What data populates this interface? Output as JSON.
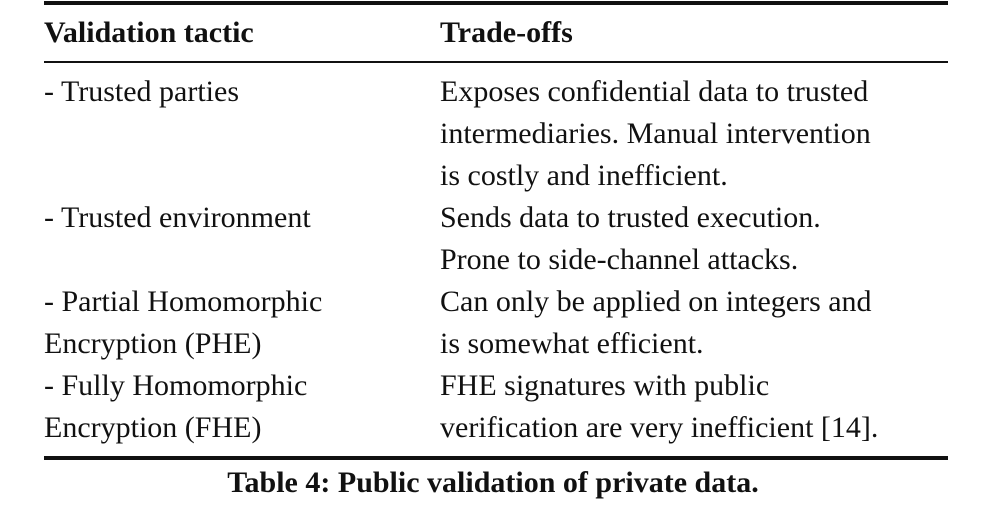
{
  "table": {
    "headers": [
      "Validation tactic",
      "Trade-offs"
    ],
    "rows": [
      {
        "tactic": [
          "- Trusted parties"
        ],
        "tradeoffs": [
          "Exposes confidential data to trusted",
          "intermediaries. Manual intervention",
          "is costly and inefficient."
        ]
      },
      {
        "tactic": [
          "- Trusted environment"
        ],
        "tradeoffs": [
          "Sends data to trusted execution.",
          "Prone to side-channel attacks."
        ]
      },
      {
        "tactic": [
          "- Partial Homomorphic",
          "Encryption (PHE)"
        ],
        "tradeoffs": [
          "Can only be applied on integers and",
          "is somewhat efficient."
        ]
      },
      {
        "tactic": [
          "- Fully Homomorphic",
          "Encryption (FHE)"
        ],
        "tradeoffs": [
          "FHE signatures with public",
          "verification are very inefficient [14]."
        ]
      }
    ],
    "caption": "Table 4: Public validation of private data."
  }
}
